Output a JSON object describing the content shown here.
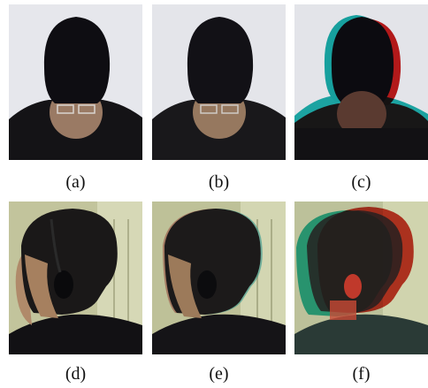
{
  "figure": {
    "panels": [
      {
        "id": "a",
        "caption": "(a)",
        "subject": "head-down-face",
        "effect": "original"
      },
      {
        "id": "b",
        "caption": "(b)",
        "subject": "head-down-face",
        "effect": "slight-blur"
      },
      {
        "id": "c",
        "caption": "(c)",
        "subject": "head-down-face",
        "effect": "red-cyan-misaligned"
      },
      {
        "id": "d",
        "caption": "(d)",
        "subject": "side-profile-headphones",
        "effect": "original"
      },
      {
        "id": "e",
        "caption": "(e)",
        "subject": "side-profile-headphones",
        "effect": "slight-blur"
      },
      {
        "id": "f",
        "caption": "(f)",
        "subject": "side-profile-headphones",
        "effect": "red-cyan-misaligned"
      }
    ]
  }
}
